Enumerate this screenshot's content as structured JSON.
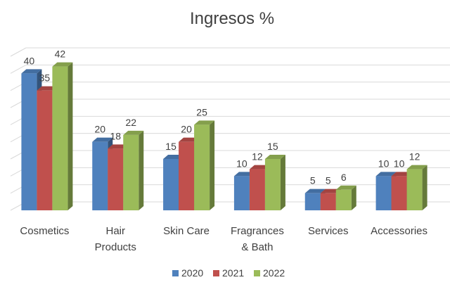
{
  "chart_data": {
    "type": "bar",
    "title": "Ingresos %",
    "categories": [
      [
        "Cosmetics"
      ],
      [
        "Hair",
        "Products"
      ],
      [
        "Skin Care"
      ],
      [
        "Fragrances",
        "& Bath"
      ],
      [
        "Services"
      ],
      [
        "Accessories"
      ]
    ],
    "series": [
      {
        "name": "2020",
        "values": [
          40,
          20,
          15,
          10,
          5,
          10
        ],
        "color": "#4f81bd"
      },
      {
        "name": "2021",
        "values": [
          35,
          18,
          20,
          12,
          5,
          10
        ],
        "color": "#c0504d"
      },
      {
        "name": "2022",
        "values": [
          42,
          22,
          25,
          15,
          6,
          12
        ],
        "color": "#9bbb59"
      }
    ],
    "ylim": [
      0,
      45
    ],
    "ytick_step": 5,
    "grid": true,
    "legend": "bottom",
    "style": "3d-clustered-column"
  }
}
